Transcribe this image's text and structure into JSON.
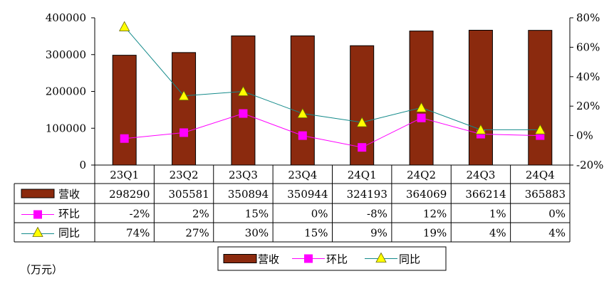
{
  "chart_data": {
    "type": "bar",
    "categories": [
      "23Q1",
      "23Q2",
      "23Q3",
      "23Q4",
      "24Q1",
      "24Q2",
      "24Q3",
      "24Q4"
    ],
    "series": [
      {
        "name": "营收",
        "type": "bar",
        "axis": "left",
        "color": "#8B2A0E",
        "values": [
          298290,
          305581,
          350894,
          350944,
          324193,
          364069,
          366214,
          365883
        ],
        "table_labels": [
          "298290",
          "305581",
          "350894",
          "350944",
          "324193",
          "364069",
          "366214",
          "365883"
        ]
      },
      {
        "name": "环比",
        "type": "line",
        "axis": "right",
        "color": "#FF00FF",
        "marker": "square",
        "values": [
          -2,
          2,
          15,
          0,
          -8,
          12,
          1,
          0
        ],
        "table_labels": [
          "-2%",
          "2%",
          "15%",
          "0%",
          "-8%",
          "12%",
          "1%",
          "0%"
        ]
      },
      {
        "name": "同比",
        "type": "line",
        "axis": "right",
        "color": "#138A8A",
        "marker": "triangle",
        "marker_color": "#FFFF00",
        "values": [
          74,
          27,
          30,
          15,
          9,
          19,
          4,
          4
        ],
        "table_labels": [
          "74%",
          "27%",
          "30%",
          "15%",
          "9%",
          "19%",
          "4%",
          "4%"
        ]
      }
    ],
    "y_left": {
      "min": 0,
      "max": 400000,
      "ticks": [
        "0",
        "100000",
        "200000",
        "300000",
        "400000"
      ]
    },
    "y_right": {
      "min": -20,
      "max": 80,
      "ticks": [
        "-20%",
        "0%",
        "20%",
        "40%",
        "60%",
        "80%"
      ]
    },
    "grid": false,
    "legend_position": "bottom",
    "data_table": true
  },
  "unit_label": "（万元）"
}
